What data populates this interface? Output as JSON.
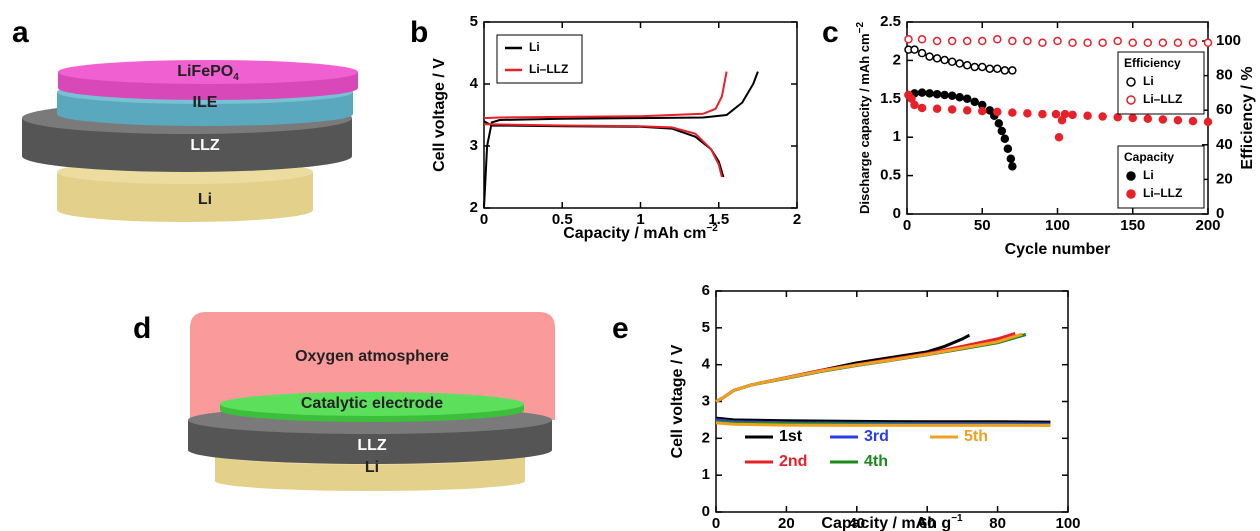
{
  "diagrams": [
    {
      "panel": "a",
      "layers": [
        {
          "text": "LiFePO",
          "sub": "4"
        },
        "ILE",
        "LLZ",
        "Li"
      ]
    },
    {
      "panel": "d",
      "labels": [
        "Oxygen atmosphere",
        "Catalytic electrode",
        "LLZ",
        "Li"
      ]
    }
  ],
  "chart_data": [
    {
      "panel": "b",
      "type": "line",
      "ylabel": "Cell voltage / V",
      "xlabel": {
        "text": "Capacity / mAh cm",
        "sup": "−2"
      },
      "xlim": [
        0,
        2
      ],
      "ylim": [
        2,
        5
      ],
      "xticks": [
        0,
        0.5,
        1,
        1.5,
        2
      ],
      "yticks": [
        2,
        3,
        4,
        5
      ],
      "legend": "upper left",
      "series": [
        {
          "name": "Li",
          "color": "#000000",
          "x": [
            0,
            0.02,
            0.05,
            0.1,
            0.5,
            1.0,
            1.4,
            1.55,
            1.65,
            1.72,
            1.75,
            null,
            0,
            0.05,
            0.5,
            1.0,
            1.2,
            1.35,
            1.45,
            1.5,
            1.53
          ],
          "values": [
            2.0,
            3.0,
            3.38,
            3.42,
            3.44,
            3.45,
            3.46,
            3.5,
            3.7,
            4.0,
            4.2,
            null,
            3.4,
            3.33,
            3.32,
            3.31,
            3.28,
            3.15,
            2.95,
            2.75,
            2.5
          ]
        },
        {
          "name": "Li–LLZ",
          "color": "#e8202a",
          "x": [
            0,
            0.1,
            0.5,
            1.0,
            1.4,
            1.48,
            1.52,
            1.55,
            null,
            0,
            0.5,
            1.0,
            1.2,
            1.35,
            1.45,
            1.5,
            1.52
          ],
          "values": [
            3.45,
            3.46,
            3.47,
            3.48,
            3.52,
            3.6,
            3.8,
            4.2,
            null,
            3.35,
            3.33,
            3.32,
            3.3,
            3.2,
            2.95,
            2.7,
            2.5
          ]
        }
      ]
    },
    {
      "panel": "c",
      "type": "scatter",
      "xlabel": "Cycle number",
      "ylabel": {
        "text": "Discharge capacity / mAh cm",
        "sup": "−2"
      },
      "y2label": "Efficiency / %",
      "xlim": [
        0,
        200
      ],
      "ylim": [
        0,
        2.5
      ],
      "y2lim": [
        0,
        111
      ],
      "xticks": [
        0,
        50,
        100,
        150,
        200
      ],
      "yticks": [
        0,
        0.5,
        1,
        1.5,
        2,
        2.5
      ],
      "y2ticks": [
        0,
        20,
        40,
        60,
        80,
        100
      ],
      "legend_titles": [
        "Efficiency",
        "Capacity"
      ],
      "series": [
        {
          "name": "Li",
          "color": "#000000",
          "marker": "open",
          "group": 0,
          "axis": "y2",
          "x": [
            1,
            5,
            10,
            15,
            20,
            25,
            30,
            35,
            40,
            45,
            50,
            55,
            60,
            65,
            70
          ],
          "values": [
            95,
            95,
            93,
            91,
            90,
            89,
            88,
            87,
            86,
            85,
            85,
            84,
            84,
            83,
            83
          ]
        },
        {
          "name": "Li–LLZ",
          "color": "#e8202a",
          "marker": "open",
          "group": 0,
          "axis": "y2",
          "x": [
            1,
            10,
            20,
            30,
            40,
            50,
            60,
            70,
            80,
            90,
            100,
            110,
            120,
            130,
            140,
            150,
            160,
            170,
            180,
            190,
            200
          ],
          "values": [
            101,
            101,
            100,
            100,
            100,
            100,
            101,
            100,
            100,
            99,
            100,
            99,
            99,
            99,
            100,
            99,
            99,
            99,
            99,
            99,
            99
          ]
        },
        {
          "name": "Li",
          "color": "#000000",
          "marker": "filled",
          "group": 1,
          "x": [
            1,
            5,
            10,
            15,
            20,
            25,
            30,
            35,
            40,
            45,
            50,
            55,
            58,
            61,
            63,
            65,
            67,
            69,
            70
          ],
          "values": [
            1.55,
            1.57,
            1.58,
            1.57,
            1.56,
            1.55,
            1.54,
            1.52,
            1.5,
            1.46,
            1.42,
            1.35,
            1.28,
            1.18,
            1.08,
            0.98,
            0.85,
            0.72,
            0.62
          ]
        },
        {
          "name": "Li–LLZ",
          "color": "#e8202a",
          "marker": "filled",
          "group": 1,
          "x": [
            1,
            3,
            5,
            10,
            20,
            30,
            40,
            50,
            60,
            70,
            80,
            90,
            99,
            101,
            103,
            105,
            110,
            120,
            130,
            140,
            150,
            160,
            170,
            180,
            190,
            200
          ],
          "values": [
            1.55,
            1.5,
            1.42,
            1.38,
            1.37,
            1.36,
            1.35,
            1.34,
            1.33,
            1.32,
            1.31,
            1.3,
            1.3,
            1.0,
            1.22,
            1.3,
            1.29,
            1.28,
            1.27,
            1.26,
            1.25,
            1.24,
            1.23,
            1.22,
            1.21,
            1.2
          ]
        }
      ]
    },
    {
      "panel": "e",
      "type": "line",
      "ylabel": "Cell voltage / V",
      "xlabel": {
        "text": "Capacity / mAh g",
        "sup": "−1"
      },
      "xlim": [
        0,
        100
      ],
      "ylim": [
        0,
        6
      ],
      "xticks": [
        0,
        20,
        40,
        60,
        80,
        100
      ],
      "yticks": [
        0,
        1,
        2,
        3,
        4,
        5,
        6
      ],
      "series": [
        {
          "name": "1st",
          "color": "#000000",
          "x": [
            0,
            2,
            5,
            10,
            20,
            30,
            40,
            50,
            60,
            65,
            70,
            72,
            null,
            0,
            5,
            20,
            40,
            60,
            80,
            95
          ],
          "values": [
            3.0,
            3.1,
            3.3,
            3.45,
            3.65,
            3.85,
            4.05,
            4.2,
            4.35,
            4.5,
            4.7,
            4.8,
            null,
            2.55,
            2.5,
            2.48,
            2.46,
            2.45,
            2.45,
            2.44
          ]
        },
        {
          "name": "2nd",
          "color": "#e8202a",
          "x": [
            0,
            2,
            5,
            10,
            20,
            30,
            40,
            50,
            60,
            70,
            80,
            85,
            null,
            0,
            5,
            20,
            40,
            60,
            80,
            95
          ],
          "values": [
            3.0,
            3.1,
            3.3,
            3.45,
            3.65,
            3.85,
            4.0,
            4.15,
            4.3,
            4.5,
            4.7,
            4.85,
            null,
            2.5,
            2.45,
            2.42,
            2.4,
            2.4,
            2.4,
            2.39
          ]
        },
        {
          "name": "3rd",
          "color": "#2a3ee8",
          "x": [
            0,
            2,
            5,
            10,
            20,
            30,
            40,
            50,
            60,
            70,
            80,
            88,
            null,
            0,
            5,
            20,
            40,
            60,
            80,
            95
          ],
          "values": [
            3.0,
            3.1,
            3.3,
            3.45,
            3.63,
            3.82,
            3.98,
            4.12,
            4.27,
            4.43,
            4.6,
            4.82,
            null,
            2.5,
            2.45,
            2.42,
            2.41,
            2.4,
            2.4,
            2.39
          ]
        },
        {
          "name": "4th",
          "color": "#1a8a1a",
          "x": [
            0,
            2,
            5,
            10,
            20,
            30,
            40,
            50,
            60,
            70,
            80,
            88,
            null,
            0,
            5,
            20,
            40,
            60,
            80,
            95
          ],
          "values": [
            3.0,
            3.1,
            3.3,
            3.45,
            3.63,
            3.82,
            3.98,
            4.12,
            4.27,
            4.43,
            4.6,
            4.82,
            null,
            2.45,
            2.42,
            2.4,
            2.38,
            2.37,
            2.37,
            2.36
          ]
        },
        {
          "name": "5th",
          "color": "#f0a020",
          "x": [
            0,
            2,
            5,
            10,
            20,
            30,
            40,
            50,
            60,
            70,
            80,
            87,
            null,
            0,
            5,
            20,
            40,
            60,
            80,
            95
          ],
          "values": [
            3.0,
            3.1,
            3.3,
            3.45,
            3.64,
            3.83,
            3.99,
            4.13,
            4.28,
            4.45,
            4.62,
            4.83,
            null,
            2.42,
            2.38,
            2.36,
            2.35,
            2.35,
            2.35,
            2.35
          ]
        }
      ]
    }
  ]
}
